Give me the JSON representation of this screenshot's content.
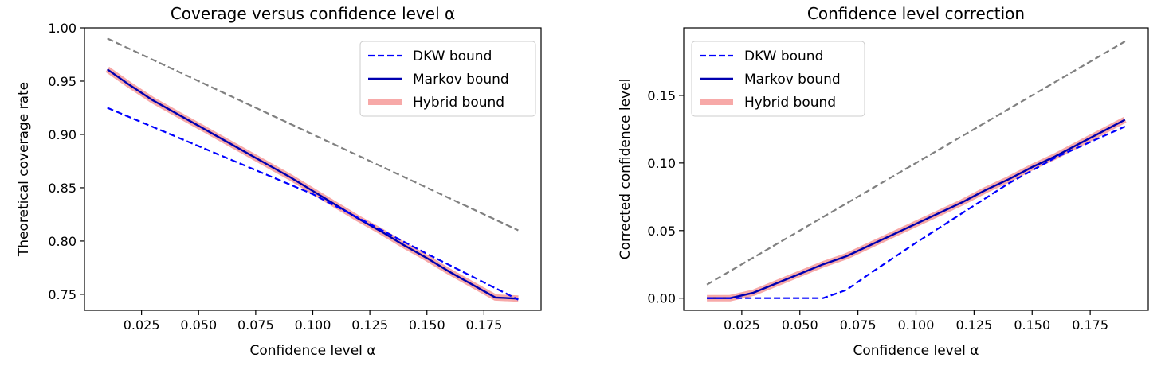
{
  "chart_data": [
    {
      "type": "line",
      "title": "Coverage versus confidence level α",
      "xlabel": "Confidence level α",
      "ylabel": "Theoretical coverage rate",
      "xlim": [
        0.0,
        0.2
      ],
      "ylim": [
        0.735,
        1.0
      ],
      "xticks": [
        0.025,
        0.05,
        0.075,
        0.1,
        0.125,
        0.15,
        0.175
      ],
      "xtick_labels": [
        "0.025",
        "0.050",
        "0.075",
        "0.100",
        "0.125",
        "0.150",
        "0.175"
      ],
      "yticks": [
        0.75,
        0.8,
        0.85,
        0.9,
        0.95,
        1.0
      ],
      "ytick_labels": [
        "0.75",
        "0.80",
        "0.85",
        "0.90",
        "0.95",
        "1.00"
      ],
      "legend_position": "top-right",
      "grid": false,
      "series": [
        {
          "name": "",
          "style": "dashed",
          "color": "#808080",
          "x": [
            0.01,
            0.19
          ],
          "y": [
            0.99,
            0.81
          ]
        },
        {
          "name": "DKW bound",
          "style": "dashed",
          "color": "#0000ff",
          "x": [
            0.01,
            0.05,
            0.1,
            0.15,
            0.19
          ],
          "y": [
            0.925,
            0.889,
            0.844,
            0.788,
            0.745
          ]
        },
        {
          "name": "Markov bound",
          "style": "solid",
          "color": "#0000b0",
          "x": [
            0.01,
            0.02,
            0.03,
            0.04,
            0.05,
            0.06,
            0.07,
            0.08,
            0.09,
            0.1,
            0.11,
            0.12,
            0.13,
            0.14,
            0.15,
            0.16,
            0.17,
            0.18,
            0.19
          ],
          "y": [
            0.961,
            0.946,
            0.932,
            0.92,
            0.908,
            0.896,
            0.884,
            0.872,
            0.86,
            0.847,
            0.834,
            0.821,
            0.809,
            0.796,
            0.784,
            0.771,
            0.759,
            0.747,
            0.746
          ]
        },
        {
          "name": "Hybrid bound",
          "style": "thick",
          "color": "#f7a9a8",
          "x": [
            0.01,
            0.02,
            0.03,
            0.04,
            0.05,
            0.06,
            0.07,
            0.08,
            0.09,
            0.1,
            0.11,
            0.12,
            0.13,
            0.14,
            0.15,
            0.16,
            0.17,
            0.18,
            0.19
          ],
          "y": [
            0.961,
            0.946,
            0.932,
            0.92,
            0.908,
            0.896,
            0.884,
            0.872,
            0.86,
            0.847,
            0.834,
            0.821,
            0.809,
            0.796,
            0.784,
            0.771,
            0.759,
            0.747,
            0.746
          ]
        }
      ]
    },
    {
      "type": "line",
      "title": "Confidence level correction",
      "xlabel": "Confidence level α",
      "ylabel": "Corrected confidence level",
      "xlim": [
        0.0,
        0.2
      ],
      "ylim": [
        -0.009,
        0.2
      ],
      "xticks": [
        0.025,
        0.05,
        0.075,
        0.1,
        0.125,
        0.15,
        0.175
      ],
      "xtick_labels": [
        "0.025",
        "0.050",
        "0.075",
        "0.100",
        "0.125",
        "0.150",
        "0.175"
      ],
      "yticks": [
        0.0,
        0.05,
        0.1,
        0.15
      ],
      "ytick_labels": [
        "0.00",
        "0.05",
        "0.10",
        "0.15"
      ],
      "legend_position": "top-left",
      "grid": false,
      "series": [
        {
          "name": "",
          "style": "dashed",
          "color": "#808080",
          "x": [
            0.01,
            0.19
          ],
          "y": [
            0.01,
            0.19
          ]
        },
        {
          "name": "DKW bound",
          "style": "dashed",
          "color": "#0000ff",
          "x": [
            0.01,
            0.02,
            0.03,
            0.04,
            0.05,
            0.06,
            0.07,
            0.08,
            0.1,
            0.12,
            0.14,
            0.16,
            0.19
          ],
          "y": [
            0.0,
            0.0,
            0.0,
            0.0,
            0.0,
            0.0,
            0.006,
            0.018,
            0.041,
            0.063,
            0.085,
            0.104,
            0.127
          ]
        },
        {
          "name": "Markov bound",
          "style": "solid",
          "color": "#0000b0",
          "x": [
            0.01,
            0.02,
            0.03,
            0.04,
            0.05,
            0.06,
            0.07,
            0.08,
            0.09,
            0.1,
            0.11,
            0.12,
            0.13,
            0.14,
            0.15,
            0.16,
            0.17,
            0.18,
            0.19
          ],
          "y": [
            0.0,
            0.0,
            0.004,
            0.011,
            0.018,
            0.025,
            0.031,
            0.039,
            0.047,
            0.055,
            0.063,
            0.071,
            0.08,
            0.088,
            0.097,
            0.105,
            0.114,
            0.123,
            0.132
          ]
        },
        {
          "name": "Hybrid bound",
          "style": "thick",
          "color": "#f7a9a8",
          "x": [
            0.01,
            0.02,
            0.03,
            0.04,
            0.05,
            0.06,
            0.07,
            0.08,
            0.09,
            0.1,
            0.11,
            0.12,
            0.13,
            0.14,
            0.15,
            0.16,
            0.17,
            0.18,
            0.19
          ],
          "y": [
            0.0,
            0.0,
            0.004,
            0.011,
            0.018,
            0.025,
            0.031,
            0.039,
            0.047,
            0.055,
            0.063,
            0.071,
            0.08,
            0.088,
            0.097,
            0.105,
            0.114,
            0.123,
            0.132
          ]
        }
      ]
    }
  ]
}
